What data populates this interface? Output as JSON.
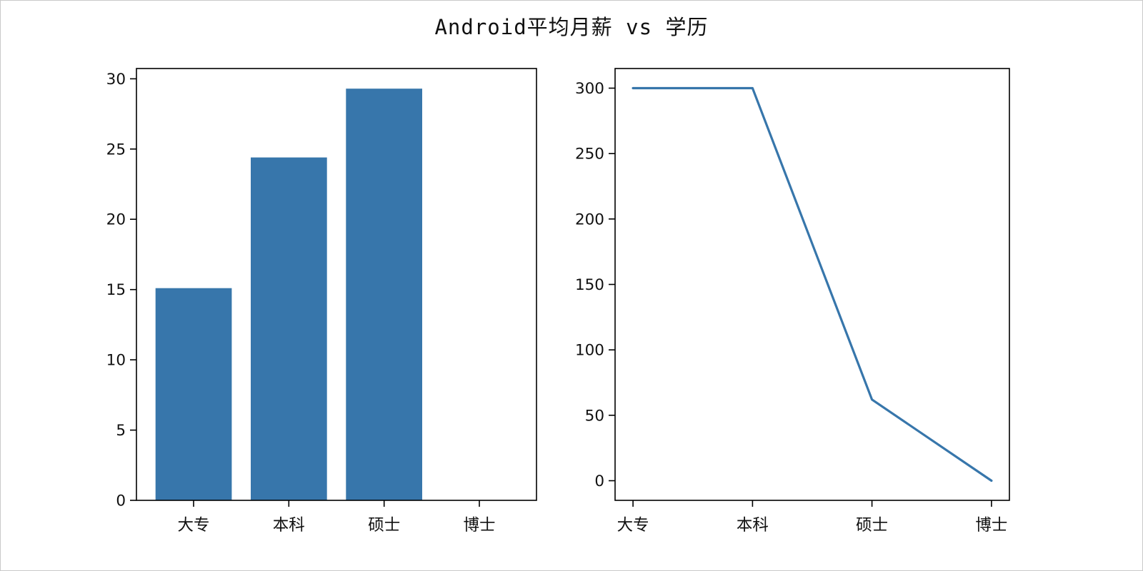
{
  "title": "Android平均月薪 vs 学历",
  "chart_data": [
    {
      "type": "bar",
      "title": "",
      "categories": [
        "大专",
        "本科",
        "硕士",
        "博士"
      ],
      "values": [
        15.1,
        24.4,
        29.3,
        0
      ],
      "yticks": [
        0,
        5,
        10,
        15,
        20,
        25,
        30
      ],
      "ylim": [
        0,
        30.73
      ],
      "xlabel": "",
      "ylabel": "",
      "color": "#3776ab",
      "grid": false,
      "legend": "none"
    },
    {
      "type": "line",
      "title": "",
      "categories": [
        "大专",
        "本科",
        "硕士",
        "博士"
      ],
      "values": [
        300,
        300,
        62,
        0
      ],
      "yticks": [
        0,
        50,
        100,
        150,
        200,
        250,
        300
      ],
      "ylim": [
        -15,
        315
      ],
      "xlabel": "",
      "ylabel": "",
      "color": "#3776ab",
      "grid": false,
      "legend": "none"
    }
  ],
  "figure": {
    "background": "#ffffff"
  }
}
